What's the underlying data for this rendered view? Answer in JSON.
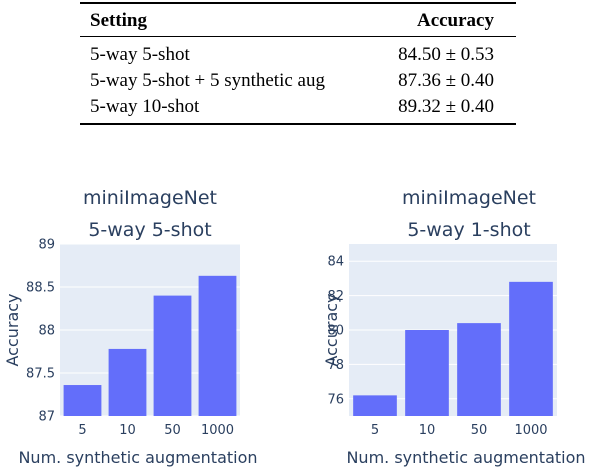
{
  "table": {
    "headers": [
      "Setting",
      "Accuracy"
    ],
    "rows": [
      [
        "5-way 5-shot",
        "84.50 ± 0.53"
      ],
      [
        "5-way 5-shot + 5 synthetic aug",
        "87.36 ± 0.40"
      ],
      [
        "5-way 10-shot",
        "89.32 ± 0.40"
      ]
    ]
  },
  "colors": {
    "bar": "#636efa",
    "plot_bg": "#e5ecf6",
    "grid": "#ffffff",
    "text": "#2a3f5f"
  },
  "chart_data": [
    {
      "type": "bar",
      "title_lines": [
        "miniImageNet",
        "5-way 5-shot"
      ],
      "categories": [
        "5",
        "10",
        "50",
        "1000"
      ],
      "values": [
        87.36,
        87.78,
        88.4,
        88.63
      ],
      "xlabel": "Num. synthetic augmentation",
      "ylabel": "Accuracy",
      "ylim": [
        87,
        89
      ],
      "yticks": [
        87,
        87.5,
        88,
        88.5,
        89
      ],
      "ytick_labels": [
        "87",
        "87.5",
        "88",
        "88.5",
        "89"
      ],
      "grid": true
    },
    {
      "type": "bar",
      "title_lines": [
        "miniImageNet",
        "5-way 1-shot"
      ],
      "categories": [
        "5",
        "10",
        "50",
        "1000"
      ],
      "values": [
        76.2,
        80.0,
        80.4,
        82.8
      ],
      "xlabel": "Num. synthetic augmentation",
      "ylabel": "Accuracy",
      "ylim": [
        75,
        85
      ],
      "yticks": [
        76,
        78,
        80,
        82,
        84
      ],
      "ytick_labels": [
        "76",
        "78",
        "80",
        "82",
        "84"
      ],
      "grid": true
    }
  ]
}
